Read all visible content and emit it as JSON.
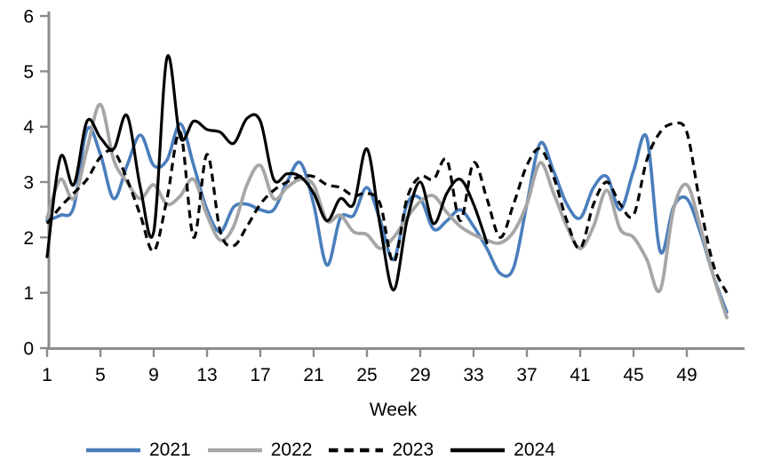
{
  "page": {
    "background": "#ffffff"
  },
  "chart_data": {
    "type": "line",
    "title": "",
    "xlabel": "Week",
    "ylabel": "",
    "x_unit": "week",
    "x_start": 1,
    "x_end": 52,
    "ylim": [
      0,
      6
    ],
    "yticks": [
      0,
      1,
      2,
      3,
      4,
      5,
      6
    ],
    "xticks": [
      1,
      5,
      9,
      13,
      17,
      21,
      25,
      29,
      33,
      37,
      41,
      45,
      49
    ],
    "grid": false,
    "smooth": true,
    "legend_position": "bottom",
    "axis_color": "#8c8c8c",
    "tick_label_color": "#000000",
    "series": [
      {
        "name": "2021",
        "color": "#4a7ebc",
        "style": "solid",
        "start_week": 1,
        "values": [
          2.3,
          2.4,
          2.55,
          3.95,
          3.5,
          2.7,
          3.3,
          3.85,
          3.3,
          3.4,
          4.05,
          3.3,
          2.5,
          2.1,
          2.55,
          2.6,
          2.5,
          2.5,
          3.0,
          3.35,
          2.6,
          1.5,
          2.35,
          2.4,
          2.9,
          2.3,
          1.6,
          2.6,
          2.7,
          2.15,
          2.3,
          2.5,
          2.2,
          1.8,
          1.35,
          1.45,
          2.6,
          3.7,
          3.2,
          2.6,
          2.35,
          2.9,
          3.1,
          2.5,
          3.2,
          3.8,
          1.75,
          2.55,
          2.7,
          2.1,
          1.3,
          0.65
        ]
      },
      {
        "name": "2022",
        "color": "#a6a6a6",
        "style": "solid",
        "start_week": 1,
        "values": [
          2.35,
          3.05,
          2.7,
          3.6,
          4.4,
          3.4,
          3.0,
          2.7,
          2.95,
          2.6,
          2.75,
          3.05,
          2.4,
          1.95,
          2.2,
          2.95,
          3.3,
          2.7,
          2.9,
          3.05,
          2.95,
          2.3,
          2.4,
          2.1,
          2.05,
          1.8,
          2.0,
          2.35,
          2.65,
          2.75,
          2.45,
          2.2,
          2.05,
          1.95,
          1.9,
          2.1,
          2.6,
          3.35,
          2.8,
          2.2,
          1.8,
          2.2,
          2.85,
          2.15,
          2.0,
          1.6,
          1.05,
          2.5,
          2.95,
          2.2,
          1.3,
          0.55
        ]
      },
      {
        "name": "2023",
        "color": "#000000",
        "style": "dashed",
        "start_week": 1,
        "values": [
          2.25,
          2.55,
          2.8,
          3.05,
          3.45,
          3.55,
          3.05,
          2.4,
          1.75,
          2.7,
          3.9,
          2.0,
          3.5,
          2.1,
          1.85,
          2.2,
          2.6,
          2.85,
          3.0,
          3.1,
          3.1,
          2.95,
          2.9,
          2.75,
          2.8,
          2.6,
          1.55,
          2.7,
          3.1,
          3.05,
          3.4,
          2.3,
          3.35,
          2.7,
          2.0,
          2.6,
          3.3,
          3.6,
          3.1,
          2.3,
          1.8,
          2.6,
          3.0,
          2.6,
          2.4,
          3.4,
          3.9,
          4.05,
          3.9,
          2.6,
          1.5,
          1.0
        ]
      },
      {
        "name": "2024",
        "color": "#000000",
        "style": "solid",
        "start_week": 1,
        "values": [
          1.65,
          3.45,
          2.95,
          4.1,
          3.8,
          3.6,
          4.2,
          2.9,
          2.1,
          5.25,
          3.8,
          4.1,
          3.95,
          3.9,
          3.7,
          4.15,
          4.1,
          3.05,
          3.15,
          3.1,
          2.8,
          2.3,
          2.7,
          2.6,
          3.6,
          2.2,
          1.05,
          2.3,
          3.0,
          2.25,
          2.8,
          3.05,
          2.6,
          1.9
        ]
      }
    ]
  }
}
